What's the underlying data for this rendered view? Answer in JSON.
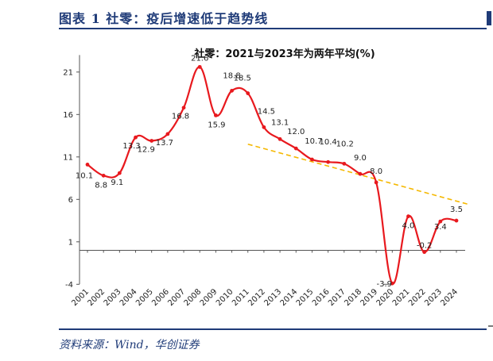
{
  "header": {
    "title": "图表 1  社零：疫后增速低于趋势线"
  },
  "source": "资料来源：Wind，华创证券",
  "chart_data": {
    "type": "line",
    "title": "社零：2021与2023年为两年平均(%)",
    "categories": [
      "2001",
      "2002",
      "2003",
      "2004",
      "2005",
      "2006",
      "2007",
      "2008",
      "2009",
      "2010",
      "2011",
      "2012",
      "2013",
      "2014",
      "2015",
      "2016",
      "2017",
      "2018",
      "2019",
      "2020",
      "2021",
      "2022",
      "2023",
      "2024"
    ],
    "series": [
      {
        "values": [
          10.1,
          8.8,
          9.1,
          13.3,
          12.9,
          13.7,
          16.8,
          21.6,
          15.9,
          18.8,
          18.5,
          14.5,
          13.1,
          12.0,
          10.7,
          10.4,
          10.2,
          9.0,
          8.0,
          -3.9,
          4.0,
          -0.2,
          3.4,
          3.5
        ],
        "color": "#e8191e"
      }
    ],
    "data_labels": [
      "10.1",
      "8.8",
      "9.1",
      "13.3",
      "12.9",
      "13.7",
      "16.8",
      "21.6",
      "15.9",
      "18.8",
      "18.5",
      "14.5",
      "13.1",
      "12.0",
      "10.7",
      "10.4",
      "10.2",
      "9.0",
      "8.0",
      "-3.9",
      "4.0",
      "-0.2",
      "3.4",
      "3.5"
    ],
    "trendline": {
      "from": [
        "2011",
        12.5
      ],
      "to": [
        "2024",
        5.8
      ],
      "color": "#f5b800",
      "style": "dashed"
    },
    "y_ticks": [
      -4,
      1,
      6,
      11,
      16,
      21
    ],
    "ylim": [
      -4,
      23
    ],
    "grid": false,
    "legend": "none"
  }
}
